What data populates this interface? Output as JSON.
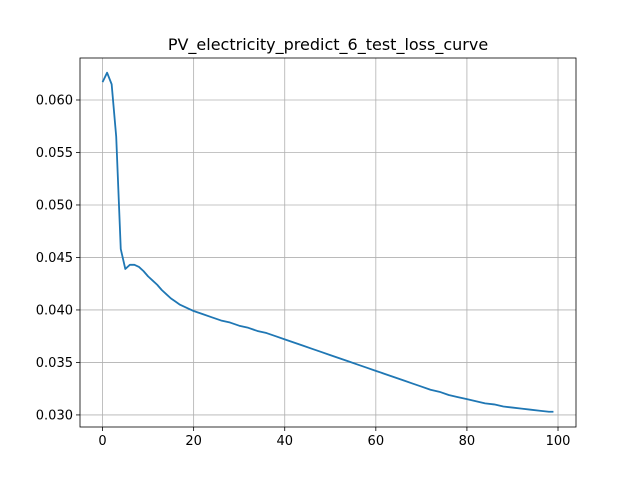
{
  "chart_data": {
    "type": "line",
    "title": "PV_electricity_predict_6_test_loss_curve",
    "xlabel": "",
    "ylabel": "",
    "xlim": [
      -4.95,
      103.95
    ],
    "ylim": [
      0.02885,
      0.064
    ],
    "grid": true,
    "x_ticks": [
      0,
      20,
      40,
      60,
      80,
      100
    ],
    "x_tick_labels": [
      "0",
      "20",
      "40",
      "60",
      "80",
      "100"
    ],
    "y_ticks": [
      0.03,
      0.035,
      0.04,
      0.045,
      0.05,
      0.055,
      0.06
    ],
    "y_tick_labels": [
      "0.030",
      "0.035",
      "0.040",
      "0.045",
      "0.050",
      "0.055",
      "0.060"
    ],
    "colors": {
      "series": "#1f77b4"
    },
    "series": [
      {
        "name": "",
        "x": [
          0,
          1,
          2,
          3,
          4,
          5,
          6,
          7,
          8,
          9,
          10,
          11,
          12,
          13,
          14,
          15,
          16,
          17,
          18,
          19,
          20,
          22,
          24,
          26,
          28,
          30,
          32,
          34,
          36,
          38,
          40,
          42,
          44,
          46,
          48,
          50,
          52,
          54,
          56,
          58,
          60,
          62,
          64,
          66,
          68,
          70,
          72,
          74,
          76,
          78,
          80,
          82,
          84,
          86,
          88,
          90,
          92,
          94,
          96,
          98,
          99
        ],
        "y": [
          0.0617,
          0.0626,
          0.0615,
          0.0565,
          0.0458,
          0.0439,
          0.0443,
          0.0443,
          0.0441,
          0.0437,
          0.0432,
          0.0428,
          0.0424,
          0.0419,
          0.0415,
          0.0411,
          0.0408,
          0.0405,
          0.0403,
          0.0401,
          0.0399,
          0.0396,
          0.0393,
          0.039,
          0.0388,
          0.0385,
          0.0383,
          0.038,
          0.0378,
          0.0375,
          0.0372,
          0.0369,
          0.0366,
          0.0363,
          0.036,
          0.0357,
          0.0354,
          0.0351,
          0.0348,
          0.0345,
          0.0342,
          0.0339,
          0.0336,
          0.0333,
          0.033,
          0.0327,
          0.0324,
          0.0322,
          0.0319,
          0.0317,
          0.0315,
          0.0313,
          0.0311,
          0.031,
          0.0308,
          0.0307,
          0.0306,
          0.0305,
          0.0304,
          0.0303,
          0.0303
        ]
      }
    ]
  }
}
